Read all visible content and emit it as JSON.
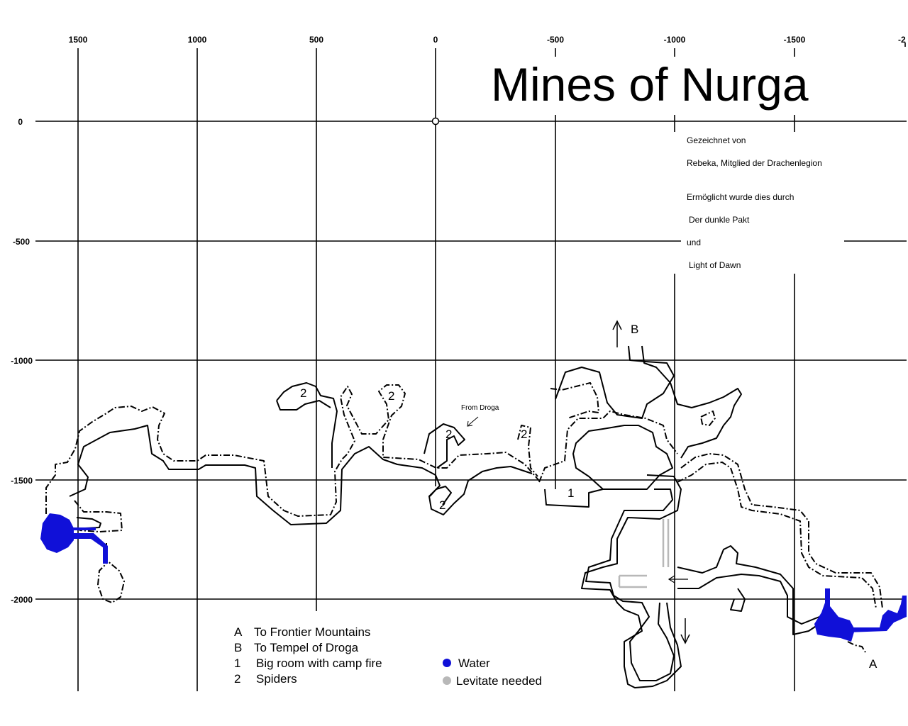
{
  "title": "Mines of Nurga",
  "credits": [
    "Gezeichnet von",
    "Rebeka, Mitglied der Drachenlegion",
    "Ermöglicht wurde dies durch",
    "Der dunkle Pakt",
    "und",
    "Light of Dawn"
  ],
  "x_ticks": [
    "1500",
    "1000",
    "500",
    "0",
    "-500",
    "-1000",
    "-1500",
    "-2"
  ],
  "y_ticks": [
    "0",
    "-500",
    "-1000",
    "-1500",
    "-2000"
  ],
  "markers": {
    "a": "A",
    "b": "B",
    "room": "1",
    "spider": "2",
    "from_droga": "From Droga"
  },
  "legend": {
    "entries": [
      {
        "key": "A",
        "text": "To Frontier Mountains"
      },
      {
        "key": "B",
        "text": "To Tempel of Droga"
      },
      {
        "key": "1",
        "text": "Big room with camp fire"
      },
      {
        "key": "2",
        "text": "Spiders"
      }
    ],
    "water_label": "Water",
    "levitate_label": "Levitate needed"
  },
  "colors": {
    "water": "#1010d8",
    "levitate": "#b8b8b8",
    "lines": "#000000"
  }
}
